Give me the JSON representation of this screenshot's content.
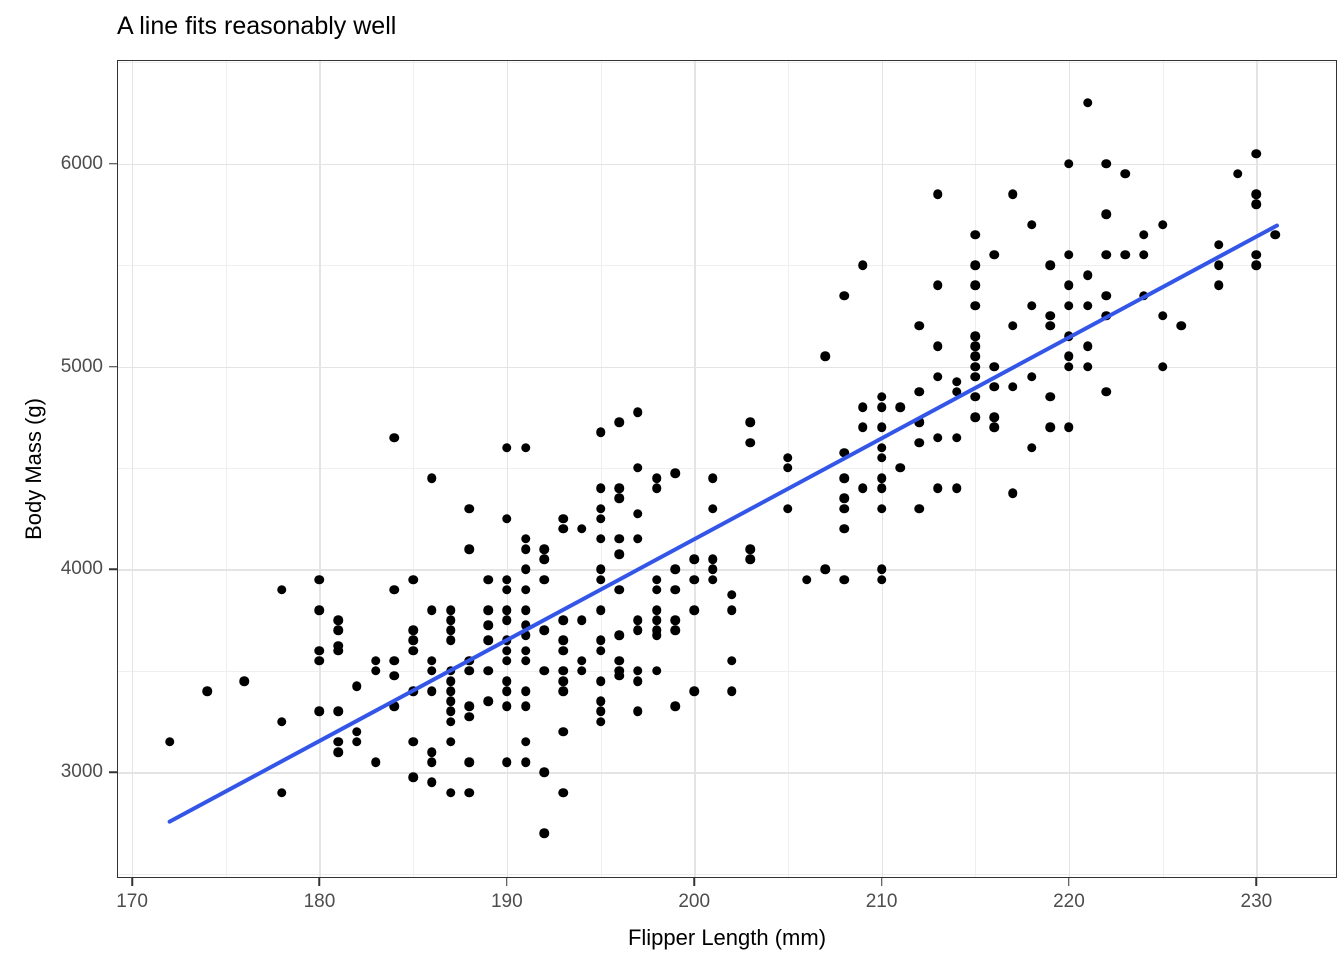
{
  "title": "A line fits reasonably well",
  "chart_data": {
    "type": "scatter",
    "title": "A line fits reasonably well",
    "xlabel": "Flipper Length (mm)",
    "ylabel": "Body Mass (g)",
    "xlim": [
      169.25,
      234.25
    ],
    "ylim": [
      2484,
      6506
    ],
    "x_ticks": [
      170,
      180,
      190,
      200,
      210,
      220,
      230
    ],
    "y_ticks": [
      3000,
      4000,
      5000,
      6000
    ],
    "x_minor_gridlines": [
      175,
      185,
      195,
      205,
      215,
      225
    ],
    "y_minor_gridlines": [
      2500,
      3500,
      4500,
      5500,
      6500
    ],
    "grid": true,
    "legend_position": "none",
    "colors": {
      "point": "#000000",
      "trend_line": "#3356E8",
      "grid_major": "#e4e4e4",
      "grid_minor": "#efefef",
      "panel_border": "#333333",
      "tick_text": "#4d4d4d",
      "axis_title_text": "#000000",
      "title_text": "#000000",
      "background": "#ffffff"
    },
    "trend_line": {
      "type": "linear-fit",
      "x1": 172,
      "y1": 2766,
      "x2": 231,
      "y2": 5697,
      "slope": 49.7,
      "intercept": -5781,
      "stroke_width": 4
    },
    "points": [
      [
        172,
        3150
      ],
      [
        174,
        3400
      ],
      [
        176,
        3450
      ],
      [
        178,
        3900
      ],
      [
        178,
        3250
      ],
      [
        178,
        2900
      ],
      [
        180,
        3950
      ],
      [
        180,
        3800
      ],
      [
        180,
        3600
      ],
      [
        180,
        3550
      ],
      [
        180,
        3300
      ],
      [
        181,
        3750
      ],
      [
        181,
        3700
      ],
      [
        181,
        3625
      ],
      [
        181,
        3600
      ],
      [
        181,
        3300
      ],
      [
        181,
        3150
      ],
      [
        181,
        3100
      ],
      [
        182,
        3425
      ],
      [
        182,
        3200
      ],
      [
        182,
        3150
      ],
      [
        183,
        3550
      ],
      [
        183,
        3500
      ],
      [
        183,
        3050
      ],
      [
        184,
        4650
      ],
      [
        184,
        3900
      ],
      [
        184,
        3550
      ],
      [
        184,
        3475
      ],
      [
        184,
        3325
      ],
      [
        185,
        3950
      ],
      [
        185,
        3700
      ],
      [
        185,
        3650
      ],
      [
        185,
        3600
      ],
      [
        185,
        3400
      ],
      [
        185,
        3150
      ],
      [
        185,
        2975
      ],
      [
        186,
        4450
      ],
      [
        186,
        3800
      ],
      [
        186,
        3550
      ],
      [
        186,
        3500
      ],
      [
        186,
        3400
      ],
      [
        186,
        3100
      ],
      [
        186,
        3050
      ],
      [
        186,
        2950
      ],
      [
        187,
        3800
      ],
      [
        187,
        3750
      ],
      [
        187,
        3700
      ],
      [
        187,
        3650
      ],
      [
        187,
        3500
      ],
      [
        187,
        3450
      ],
      [
        187,
        3400
      ],
      [
        187,
        3350
      ],
      [
        187,
        3300
      ],
      [
        187,
        3250
      ],
      [
        187,
        3150
      ],
      [
        187,
        2900
      ],
      [
        188,
        4300
      ],
      [
        188,
        4100
      ],
      [
        188,
        3550
      ],
      [
        188,
        3500
      ],
      [
        188,
        3325
      ],
      [
        188,
        3275
      ],
      [
        188,
        3050
      ],
      [
        188,
        2900
      ],
      [
        189,
        3950
      ],
      [
        189,
        3800
      ],
      [
        189,
        3725
      ],
      [
        189,
        3650
      ],
      [
        189,
        3500
      ],
      [
        189,
        3350
      ],
      [
        190,
        4600
      ],
      [
        190,
        4250
      ],
      [
        190,
        3950
      ],
      [
        190,
        3900
      ],
      [
        190,
        3800
      ],
      [
        190,
        3750
      ],
      [
        190,
        3650
      ],
      [
        190,
        3600
      ],
      [
        190,
        3550
      ],
      [
        190,
        3450
      ],
      [
        190,
        3400
      ],
      [
        190,
        3325
      ],
      [
        190,
        3050
      ],
      [
        191,
        4600
      ],
      [
        191,
        4150
      ],
      [
        191,
        4100
      ],
      [
        191,
        4000
      ],
      [
        191,
        3900
      ],
      [
        191,
        3800
      ],
      [
        191,
        3725
      ],
      [
        191,
        3675
      ],
      [
        191,
        3600
      ],
      [
        191,
        3550
      ],
      [
        191,
        3400
      ],
      [
        191,
        3325
      ],
      [
        191,
        3150
      ],
      [
        191,
        3050
      ],
      [
        192,
        4100
      ],
      [
        192,
        4050
      ],
      [
        192,
        3950
      ],
      [
        192,
        3700
      ],
      [
        192,
        3500
      ],
      [
        192,
        3000
      ],
      [
        192,
        2700
      ],
      [
        193,
        4250
      ],
      [
        193,
        4200
      ],
      [
        193,
        3750
      ],
      [
        193,
        3650
      ],
      [
        193,
        3600
      ],
      [
        193,
        3500
      ],
      [
        193,
        3450
      ],
      [
        193,
        3400
      ],
      [
        193,
        3200
      ],
      [
        193,
        2900
      ],
      [
        194,
        4200
      ],
      [
        194,
        3750
      ],
      [
        194,
        3550
      ],
      [
        194,
        3500
      ],
      [
        195,
        4675
      ],
      [
        195,
        4400
      ],
      [
        195,
        4300
      ],
      [
        195,
        4250
      ],
      [
        195,
        4150
      ],
      [
        195,
        4000
      ],
      [
        195,
        3950
      ],
      [
        195,
        3800
      ],
      [
        195,
        3650
      ],
      [
        195,
        3600
      ],
      [
        195,
        3450
      ],
      [
        195,
        3350
      ],
      [
        195,
        3300
      ],
      [
        195,
        3250
      ],
      [
        196,
        4725
      ],
      [
        196,
        4400
      ],
      [
        196,
        4350
      ],
      [
        196,
        4150
      ],
      [
        196,
        4075
      ],
      [
        196,
        3900
      ],
      [
        196,
        3675
      ],
      [
        196,
        3550
      ],
      [
        196,
        3500
      ],
      [
        196,
        3475
      ],
      [
        197,
        4775
      ],
      [
        197,
        4500
      ],
      [
        197,
        4275
      ],
      [
        197,
        4150
      ],
      [
        197,
        3750
      ],
      [
        197,
        3700
      ],
      [
        197,
        3500
      ],
      [
        197,
        3450
      ],
      [
        197,
        3300
      ],
      [
        198,
        4450
      ],
      [
        198,
        4400
      ],
      [
        198,
        3950
      ],
      [
        198,
        3900
      ],
      [
        198,
        3800
      ],
      [
        198,
        3750
      ],
      [
        198,
        3700
      ],
      [
        198,
        3675
      ],
      [
        198,
        3500
      ],
      [
        199,
        4475
      ],
      [
        199,
        4000
      ],
      [
        199,
        3900
      ],
      [
        199,
        3750
      ],
      [
        199,
        3700
      ],
      [
        199,
        3325
      ],
      [
        200,
        4050
      ],
      [
        200,
        3950
      ],
      [
        200,
        3800
      ],
      [
        200,
        3400
      ],
      [
        201,
        4450
      ],
      [
        201,
        4300
      ],
      [
        201,
        4050
      ],
      [
        201,
        4000
      ],
      [
        201,
        3950
      ],
      [
        202,
        3875
      ],
      [
        202,
        3800
      ],
      [
        202,
        3550
      ],
      [
        202,
        3400
      ],
      [
        203,
        4725
      ],
      [
        203,
        4625
      ],
      [
        203,
        4100
      ],
      [
        203,
        4050
      ],
      [
        205,
        4550
      ],
      [
        205,
        4500
      ],
      [
        205,
        4300
      ],
      [
        206,
        3950
      ],
      [
        207,
        5050
      ],
      [
        207,
        4000
      ],
      [
        208,
        5350
      ],
      [
        208,
        4575
      ],
      [
        208,
        4450
      ],
      [
        208,
        4350
      ],
      [
        208,
        4300
      ],
      [
        208,
        4200
      ],
      [
        208,
        3950
      ],
      [
        209,
        5500
      ],
      [
        209,
        4800
      ],
      [
        209,
        4700
      ],
      [
        209,
        4400
      ],
      [
        210,
        4850
      ],
      [
        210,
        4800
      ],
      [
        210,
        4700
      ],
      [
        210,
        4600
      ],
      [
        210,
        4550
      ],
      [
        210,
        4450
      ],
      [
        210,
        4400
      ],
      [
        210,
        4300
      ],
      [
        210,
        4000
      ],
      [
        210,
        3950
      ],
      [
        211,
        4800
      ],
      [
        211,
        4500
      ],
      [
        212,
        5200
      ],
      [
        212,
        4875
      ],
      [
        212,
        4725
      ],
      [
        212,
        4625
      ],
      [
        212,
        4300
      ],
      [
        213,
        5850
      ],
      [
        213,
        5400
      ],
      [
        213,
        5100
      ],
      [
        213,
        4950
      ],
      [
        213,
        4650
      ],
      [
        213,
        4400
      ],
      [
        214,
        4925
      ],
      [
        214,
        4875
      ],
      [
        214,
        4650
      ],
      [
        214,
        4400
      ],
      [
        215,
        5650
      ],
      [
        215,
        5500
      ],
      [
        215,
        5400
      ],
      [
        215,
        5300
      ],
      [
        215,
        5150
      ],
      [
        215,
        5100
      ],
      [
        215,
        5050
      ],
      [
        215,
        5000
      ],
      [
        215,
        4950
      ],
      [
        215,
        4850
      ],
      [
        215,
        4750
      ],
      [
        216,
        5550
      ],
      [
        216,
        5000
      ],
      [
        216,
        4900
      ],
      [
        216,
        4750
      ],
      [
        216,
        4700
      ],
      [
        217,
        5850
      ],
      [
        217,
        5200
      ],
      [
        217,
        4900
      ],
      [
        217,
        4375
      ],
      [
        218,
        5700
      ],
      [
        218,
        5300
      ],
      [
        218,
        4950
      ],
      [
        218,
        4600
      ],
      [
        219,
        5500
      ],
      [
        219,
        5250
      ],
      [
        219,
        5200
      ],
      [
        219,
        4850
      ],
      [
        219,
        4700
      ],
      [
        220,
        6000
      ],
      [
        220,
        5550
      ],
      [
        220,
        5400
      ],
      [
        220,
        5300
      ],
      [
        220,
        5150
      ],
      [
        220,
        5050
      ],
      [
        220,
        5000
      ],
      [
        220,
        4700
      ],
      [
        221,
        6300
      ],
      [
        221,
        5450
      ],
      [
        221,
        5300
      ],
      [
        221,
        5100
      ],
      [
        221,
        5000
      ],
      [
        222,
        6000
      ],
      [
        222,
        5750
      ],
      [
        222,
        5550
      ],
      [
        222,
        5350
      ],
      [
        222,
        5250
      ],
      [
        222,
        4875
      ],
      [
        223,
        5950
      ],
      [
        223,
        5550
      ],
      [
        224,
        5650
      ],
      [
        224,
        5550
      ],
      [
        224,
        5350
      ],
      [
        225,
        5700
      ],
      [
        225,
        5250
      ],
      [
        225,
        5000
      ],
      [
        226,
        5200
      ],
      [
        228,
        5600
      ],
      [
        228,
        5500
      ],
      [
        228,
        5400
      ],
      [
        229,
        5950
      ],
      [
        230,
        6050
      ],
      [
        230,
        5850
      ],
      [
        230,
        5800
      ],
      [
        230,
        5550
      ],
      [
        230,
        5500
      ],
      [
        231,
        5650
      ]
    ]
  }
}
